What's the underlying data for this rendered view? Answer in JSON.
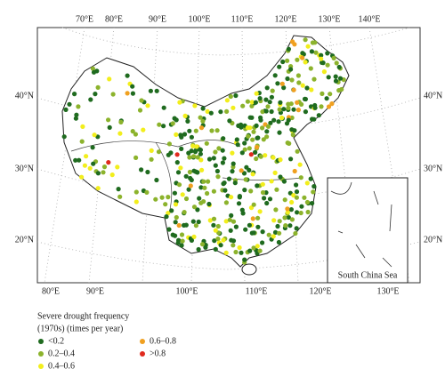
{
  "map": {
    "top_labels": [
      "70°E",
      "80°E",
      "90°E",
      "100°E",
      "110°E",
      "120°E",
      "130°E",
      "140°E"
    ],
    "bottom_labels": [
      "80°E",
      "90°E",
      "100°E",
      "110°E",
      "120°E",
      "130°E"
    ],
    "left_labels": [
      "40°N",
      "30°N",
      "20°N"
    ],
    "right_labels": [
      "40°N",
      "30°N",
      "20°N"
    ],
    "inset_label": "South China Sea"
  },
  "legend": {
    "title": [
      "Severe drought frequency",
      "(1970s) (times per year)"
    ],
    "items": [
      {
        "label": "<0.2",
        "color": "#1f6b1f"
      },
      {
        "label": "0.2–0.4",
        "color": "#8cb32c"
      },
      {
        "label": "0.4–0.6",
        "color": "#f2ee1c"
      },
      {
        "label": "0.6–0.8",
        "color": "#f0a020"
      },
      {
        "label": ">0.8",
        "color": "#e02a1e"
      }
    ]
  }
}
